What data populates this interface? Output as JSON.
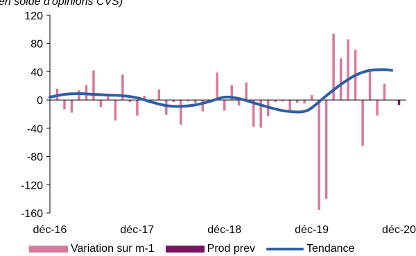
{
  "chart_data": {
    "type": "bar",
    "title": "",
    "subtitle": "en solde d'opinions CVS)",
    "xlabel": "",
    "ylabel": "",
    "ylim": [
      -160,
      120
    ],
    "yticks": [
      "120",
      "80",
      "40",
      "0",
      "-40",
      "-80",
      "-120",
      "-160"
    ],
    "xtick_labels": [
      "déc-16",
      "déc-17",
      "déc-18",
      "déc-19",
      "déc-20"
    ],
    "grid": false,
    "legend_placement": "bottom",
    "colors": {
      "variation": "#d9789f",
      "prod_prev": "#7a1460",
      "tendance": "#2e5fa4",
      "axis": "#000000"
    },
    "series": [
      {
        "name": "Variation sur m-1",
        "kind": "bar",
        "x": [
          1,
          2,
          3,
          4,
          5,
          6,
          7,
          8,
          9,
          10,
          11,
          12,
          13,
          14,
          15,
          16,
          17,
          18,
          19,
          20,
          21,
          22,
          23,
          24,
          25,
          26,
          27,
          28,
          29,
          30,
          31,
          32,
          33,
          34,
          35,
          36,
          37,
          38,
          39,
          40,
          41,
          42,
          43,
          44,
          45,
          46,
          47,
          48
        ],
        "values": [
          16,
          -13,
          -18,
          14,
          21,
          42,
          -10,
          5,
          -29,
          36,
          -3,
          -22,
          6,
          0,
          15,
          -21,
          -3,
          -35,
          -2,
          -4,
          -16,
          0,
          39,
          -15,
          21,
          -8,
          25,
          -38,
          -39,
          -23,
          -3,
          -2,
          -17,
          -4,
          -5,
          7,
          -156,
          -140,
          94,
          59,
          86,
          71,
          -65,
          41,
          -22,
          23,
          0,
          0
        ]
      },
      {
        "name": "Prod prev",
        "kind": "bar",
        "x": [
          48
        ],
        "values": [
          -7
        ]
      },
      {
        "name": "Tendance",
        "kind": "line",
        "x": [
          0,
          2,
          4,
          6,
          8,
          10,
          12,
          14,
          16,
          18,
          20,
          22,
          24,
          26,
          28,
          30,
          32,
          34,
          35,
          36,
          38,
          40,
          42,
          44,
          46,
          47
        ],
        "values": [
          4,
          8,
          9,
          8,
          7,
          6,
          3,
          -3,
          -8,
          -9,
          -7,
          -2,
          4,
          2,
          -4,
          -10,
          -15,
          -17,
          -16,
          -11,
          6,
          22,
          35,
          42,
          43,
          42
        ]
      }
    ]
  },
  "legend": {
    "variation_label": "Variation sur m-1",
    "prod_prev_label": "Prod prev",
    "tendance_label": "Tendance"
  }
}
